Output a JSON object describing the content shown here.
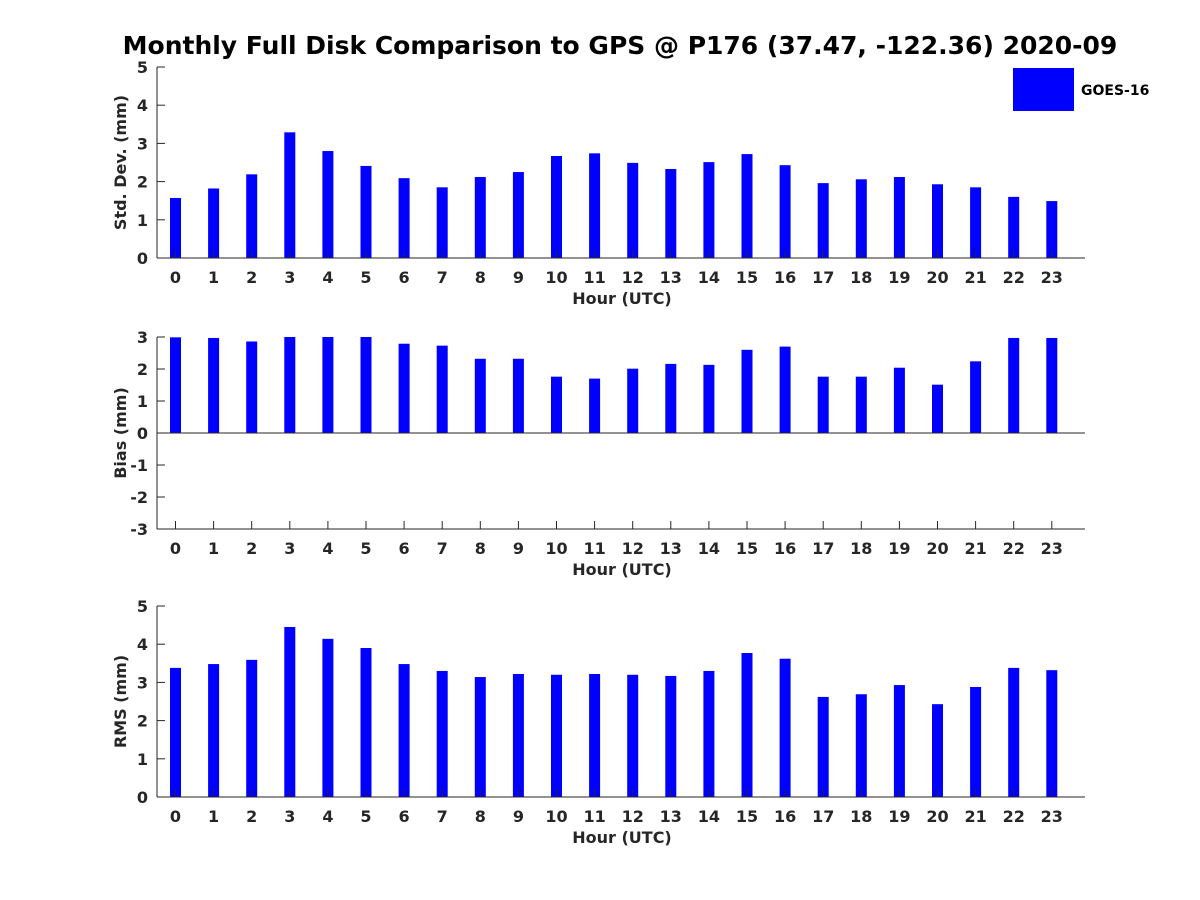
{
  "title": "Monthly Full Disk Comparison to GPS @ P176 (37.47, -122.36) 2020-09",
  "colors": {
    "bar": "#0000ff",
    "axis": "#262626",
    "background": "#ffffff"
  },
  "legend": {
    "placement": "top-right",
    "entries": [
      "GOES-16"
    ]
  },
  "chart_data": [
    {
      "type": "bar",
      "categories": [
        "0",
        "1",
        "2",
        "3",
        "4",
        "5",
        "6",
        "7",
        "8",
        "9",
        "10",
        "11",
        "12",
        "13",
        "14",
        "15",
        "16",
        "17",
        "18",
        "19",
        "20",
        "21",
        "22",
        "23"
      ],
      "series": [
        {
          "name": "GOES-16",
          "values": [
            1.57,
            1.82,
            2.19,
            3.29,
            2.8,
            2.41,
            2.09,
            1.85,
            2.12,
            2.25,
            2.67,
            2.74,
            2.49,
            2.33,
            2.51,
            2.72,
            2.43,
            1.96,
            2.06,
            2.12,
            1.93,
            1.85,
            1.6,
            1.49
          ]
        }
      ],
      "xlabel": "Hour (UTC)",
      "ylabel": "Std. Dev. (mm)",
      "ylim": [
        0,
        5
      ],
      "yticks": [
        "0",
        "1",
        "2",
        "3",
        "4",
        "5"
      ]
    },
    {
      "type": "bar",
      "categories": [
        "0",
        "1",
        "2",
        "3",
        "4",
        "5",
        "6",
        "7",
        "8",
        "9",
        "10",
        "11",
        "12",
        "13",
        "14",
        "15",
        "16",
        "17",
        "18",
        "19",
        "20",
        "21",
        "22",
        "23"
      ],
      "series": [
        {
          "name": "GOES-16",
          "values": [
            2.99,
            2.97,
            2.86,
            3.0,
            3.0,
            3.0,
            2.79,
            2.73,
            2.32,
            2.32,
            1.76,
            1.7,
            2.01,
            2.16,
            2.13,
            2.6,
            2.7,
            1.76,
            1.76,
            2.04,
            1.51,
            2.24,
            2.97,
            2.97
          ]
        }
      ],
      "xlabel": "Hour (UTC)",
      "ylabel": "Bias (mm)",
      "ylim": [
        -3,
        3
      ],
      "yticks": [
        "-3",
        "-2",
        "-1",
        "0",
        "1",
        "2",
        "3"
      ]
    },
    {
      "type": "bar",
      "categories": [
        "0",
        "1",
        "2",
        "3",
        "4",
        "5",
        "6",
        "7",
        "8",
        "9",
        "10",
        "11",
        "12",
        "13",
        "14",
        "15",
        "16",
        "17",
        "18",
        "19",
        "20",
        "21",
        "22",
        "23"
      ],
      "series": [
        {
          "name": "GOES-16",
          "values": [
            3.38,
            3.48,
            3.59,
            4.45,
            4.14,
            3.9,
            3.48,
            3.3,
            3.14,
            3.22,
            3.2,
            3.22,
            3.2,
            3.17,
            3.3,
            3.77,
            3.62,
            2.62,
            2.69,
            2.93,
            2.43,
            2.88,
            3.38,
            3.32
          ]
        }
      ],
      "xlabel": "Hour (UTC)",
      "ylabel": "RMS (mm)",
      "ylim": [
        0,
        5
      ],
      "yticks": [
        "0",
        "1",
        "2",
        "3",
        "4",
        "5"
      ]
    }
  ]
}
